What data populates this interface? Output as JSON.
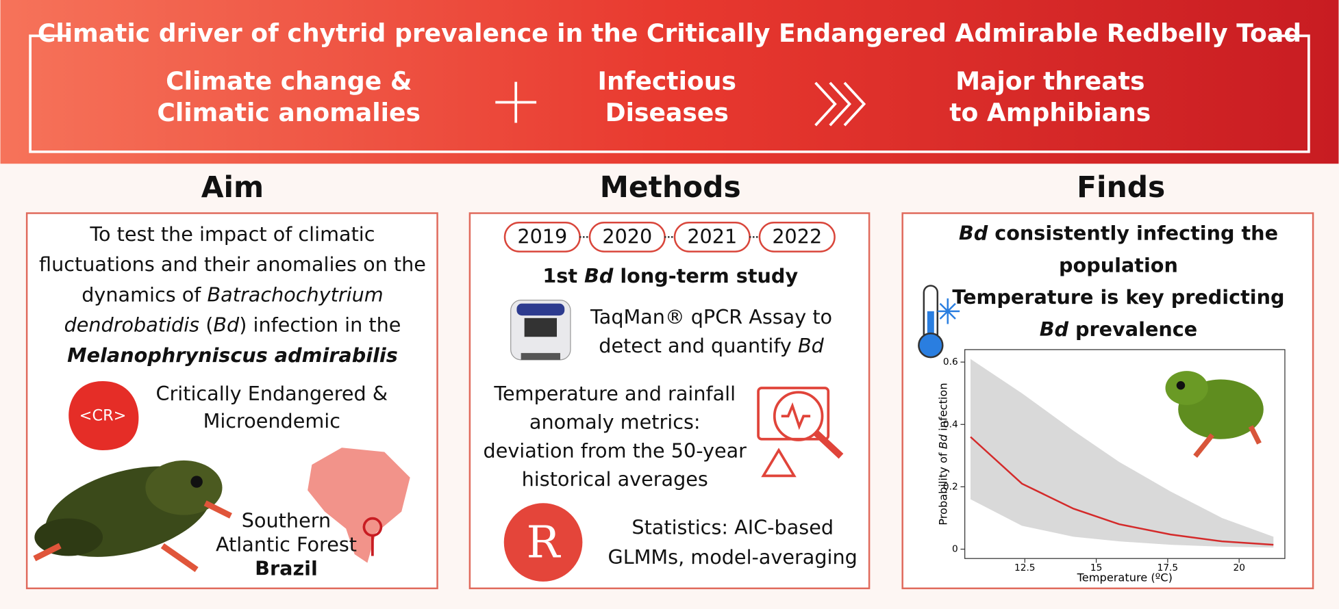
{
  "header": {
    "title": "Climatic driver of chytrid prevalence in the Critically Endangered Admirable Redbelly Toad",
    "left": [
      "Climate change &",
      "Climatic anomalies"
    ],
    "middle": [
      "Infectious",
      "Diseases"
    ],
    "right": [
      "Major threats",
      "to Amphibians"
    ]
  },
  "aim": {
    "heading": "Aim",
    "description": [
      [
        "To test the impact of climatic"
      ],
      [
        "fluctuations and their anomalies on the"
      ],
      [
        "dynamics of ",
        {
          "text": "Batrachochytrium",
          "style": "italic"
        }
      ],
      [
        {
          "text": "dendrobatidis",
          "style": "italic"
        },
        " (",
        {
          "text": "Bd",
          "style": "italic"
        },
        ") infection in the"
      ],
      [
        {
          "text": "Melanophryniscus admirabilis",
          "style": "bold-italic"
        }
      ]
    ],
    "status_badge": "<CR>",
    "status": [
      "Critically Endangered &",
      "Microendemic"
    ],
    "location": [
      "Southern",
      "Atlantic Forest",
      [
        {
          "text": "Brazil",
          "style": "bold"
        }
      ]
    ]
  },
  "methods": {
    "heading": "Methods",
    "years": [
      "2019",
      "2020",
      "2021",
      "2022"
    ],
    "study": [
      [
        "1st ",
        {
          "text": "Bd",
          "style": "italic"
        },
        " long-term study"
      ]
    ],
    "assay": [
      [
        "TaqMan® qPCR Assay to"
      ],
      [
        "detect and quantify ",
        {
          "text": "Bd",
          "style": "italic"
        }
      ]
    ],
    "anomaly": [
      "Temperature and rainfall",
      "anomaly metrics:",
      "deviation from the 50-year",
      "historical averages"
    ],
    "stats_icon": "R",
    "stats": [
      "Statistics: AIC-based",
      "GLMMs, model-averaging"
    ]
  },
  "finds": {
    "heading": "Finds",
    "text": [
      [
        {
          "text": "Bd",
          "style": "italic"
        },
        " consistently infecting the"
      ],
      [
        "population"
      ],
      [
        "Temperature is key predicting"
      ],
      [
        {
          "text": "Bd",
          "style": "italic"
        },
        " prevalence"
      ]
    ]
  },
  "chart_data": {
    "type": "line",
    "xlabel": "Temperature (ºC)",
    "ylabel": [
      "Probability of ",
      {
        "text": "Bd",
        "style": "italic"
      },
      " infection"
    ],
    "x": [
      10.6,
      12.4,
      14.2,
      15.8,
      17.6,
      19.4,
      21.2
    ],
    "values": [
      0.36,
      0.21,
      0.13,
      0.08,
      0.047,
      0.025,
      0.014
    ],
    "ci_upper": [
      0.61,
      0.5,
      0.38,
      0.28,
      0.185,
      0.1,
      0.04
    ],
    "ci_lower": [
      0.16,
      0.075,
      0.04,
      0.025,
      0.014,
      0.008,
      0.005
    ],
    "color": "#d42a2a",
    "band_color": "#d9d9d9",
    "xlim": [
      10.4,
      21.6
    ],
    "ylim": [
      -0.03,
      0.64
    ],
    "xticks": [
      12.5,
      15,
      17.5,
      20
    ],
    "yticks": [
      0,
      0.2,
      0.4,
      0.6
    ]
  }
}
